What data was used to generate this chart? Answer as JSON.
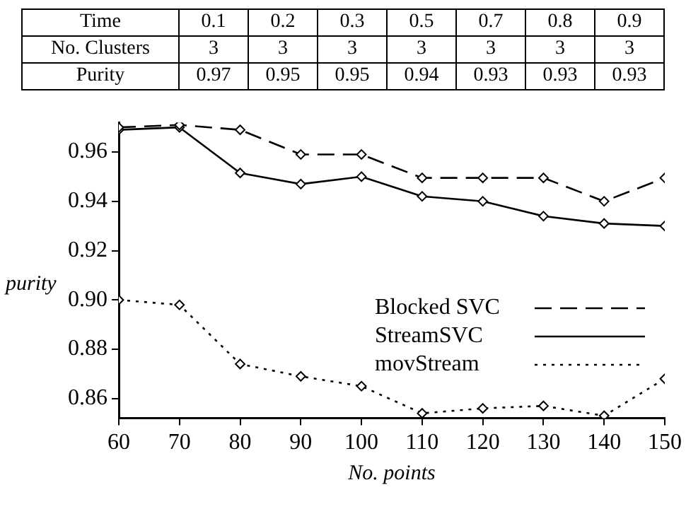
{
  "chart_data": [
    {
      "type": "heatmap",
      "xlabel": "Time",
      "categories": [
        "0.1",
        "0.2",
        "0.3",
        "0.5",
        "0.7",
        "0.8",
        "0.9"
      ],
      "y_categories": [
        "No. Clusters",
        "Purity"
      ],
      "cells": [
        [
          3,
          3,
          3,
          3,
          3,
          3,
          3
        ],
        [
          0.97,
          0.95,
          0.95,
          0.94,
          0.93,
          0.93,
          0.93
        ]
      ],
      "data_labels": true
    },
    {
      "type": "line",
      "xlabel": "No. points",
      "ylabel": "purity",
      "x": [
        60,
        70,
        80,
        90,
        100,
        110,
        120,
        130,
        140,
        150
      ],
      "series": [
        {
          "name": "Blocked SVC",
          "color": "#000000",
          "line_style": "dashed",
          "values": [
            0.97,
            0.971,
            0.969,
            0.959,
            0.959,
            0.9495,
            0.9495,
            0.9495,
            0.94,
            0.9495
          ]
        },
        {
          "name": "StreamSVC",
          "color": "#000000",
          "line_style": "solid",
          "values": [
            0.969,
            0.97,
            0.9515,
            0.947,
            0.95,
            0.942,
            0.94,
            0.934,
            0.931,
            0.93
          ]
        },
        {
          "name": "movStream",
          "color": "#000000",
          "line_style": "dotted",
          "values": [
            0.9,
            0.898,
            0.874,
            0.869,
            0.865,
            0.854,
            0.856,
            0.857,
            0.853,
            0.868
          ]
        }
      ],
      "xlim": [
        60,
        150
      ],
      "xticks": [
        60,
        70,
        80,
        90,
        100,
        110,
        120,
        130,
        140,
        150
      ],
      "ylim": [
        0.852,
        0.972
      ],
      "yticks": [
        0.86,
        0.88,
        {
          "value": 0.9,
          "label": "0.90"
        },
        0.92,
        0.94,
        0.96
      ],
      "grid": false,
      "legend": "bottom right",
      "marker": "diamond"
    }
  ]
}
